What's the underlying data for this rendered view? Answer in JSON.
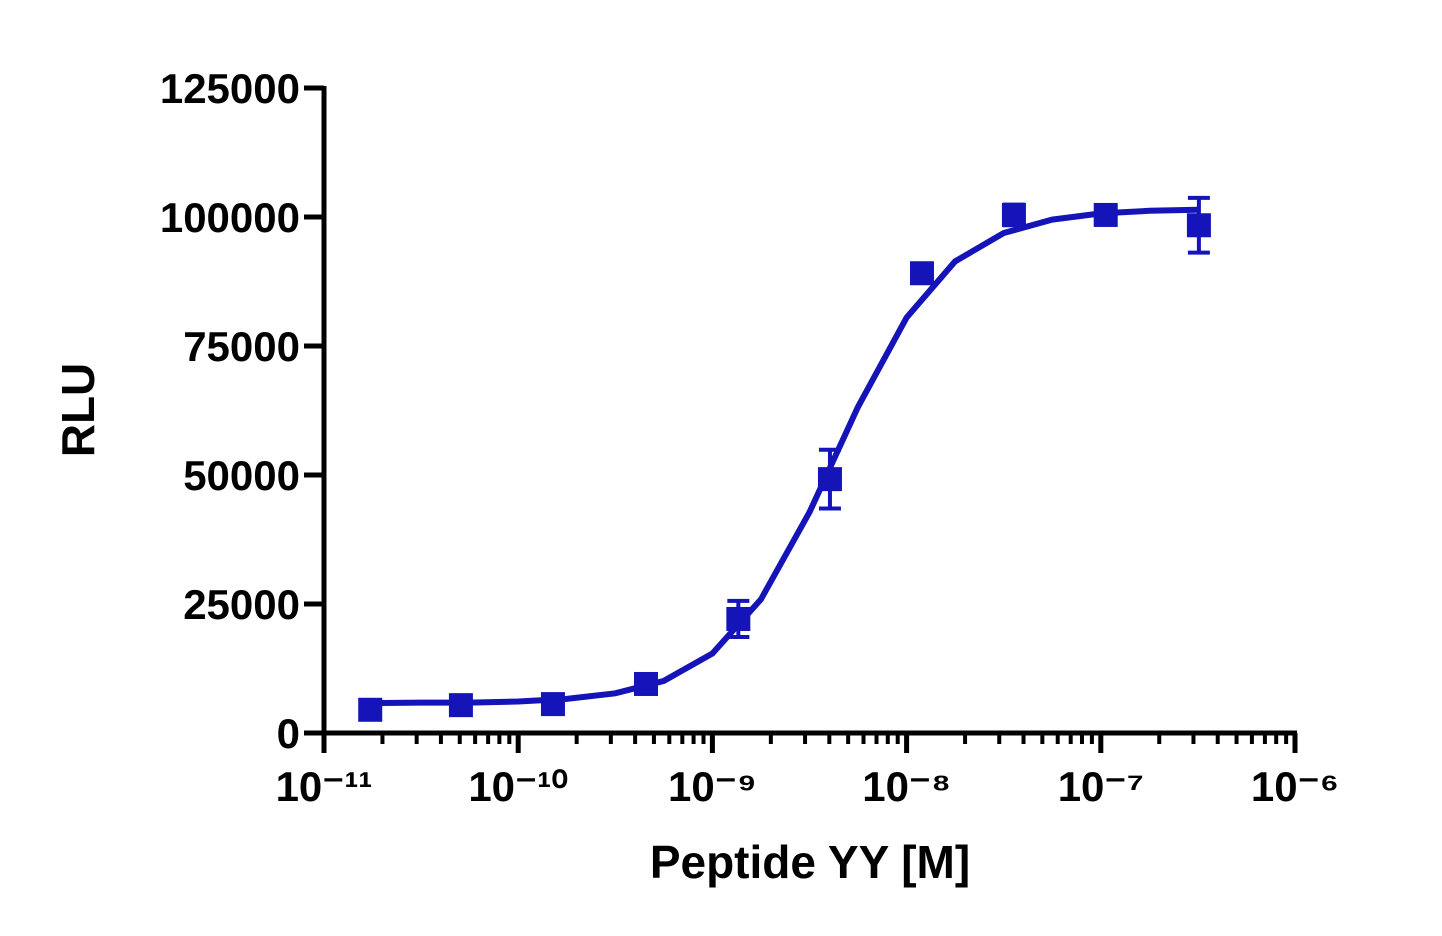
{
  "chart_data": {
    "type": "scatter",
    "x_label": "Peptide YY [M]",
    "y_label": "RLU",
    "x_log": true,
    "xlim": [
      1e-11,
      1e-06
    ],
    "xticks": [
      {
        "value": 1e-11,
        "label": "10⁻¹¹"
      },
      {
        "value": 1e-10,
        "label": "10⁻¹⁰"
      },
      {
        "value": 1e-09,
        "label": "10⁻⁹"
      },
      {
        "value": 1e-08,
        "label": "10⁻⁸"
      },
      {
        "value": 1e-07,
        "label": "10⁻⁷"
      },
      {
        "value": 1e-06,
        "label": "10⁻⁶"
      }
    ],
    "ylim": [
      0,
      125000
    ],
    "yticks": [
      0,
      25000,
      50000,
      75000,
      100000,
      125000
    ],
    "color": "#1414b8",
    "series": [
      {
        "x": [
          1.73e-11,
          5.07e-11,
          1.51e-10,
          4.55e-10,
          1.36e-09,
          4.03e-09,
          1.2e-08,
          3.57e-08,
          1.06e-07,
          3.2e-07
        ],
        "values": [
          4500,
          5400,
          5600,
          9500,
          22100,
          49200,
          89100,
          100400,
          100400,
          98400
        ],
        "errors": [
          800,
          700,
          900,
          1100,
          3500,
          5700,
          1500,
          2000,
          800,
          5300
        ]
      }
    ],
    "fit": {
      "x": [
        1.778e-11,
        3.162e-11,
        5.623e-11,
        1e-10,
        1.778e-10,
        3.162e-10,
        5.623e-10,
        1e-09,
        1.778e-09,
        3.162e-09,
        5.623e-09,
        1e-08,
        1.778e-08,
        3.162e-08,
        5.623e-08,
        1e-07,
        1.778e-07,
        3.162e-07
      ],
      "values": [
        5800,
        5900,
        5900,
        6100,
        6600,
        7700,
        10100,
        15400,
        25900,
        42800,
        63200,
        80500,
        91400,
        96900,
        99500,
        100700,
        101200,
        101400
      ]
    }
  }
}
